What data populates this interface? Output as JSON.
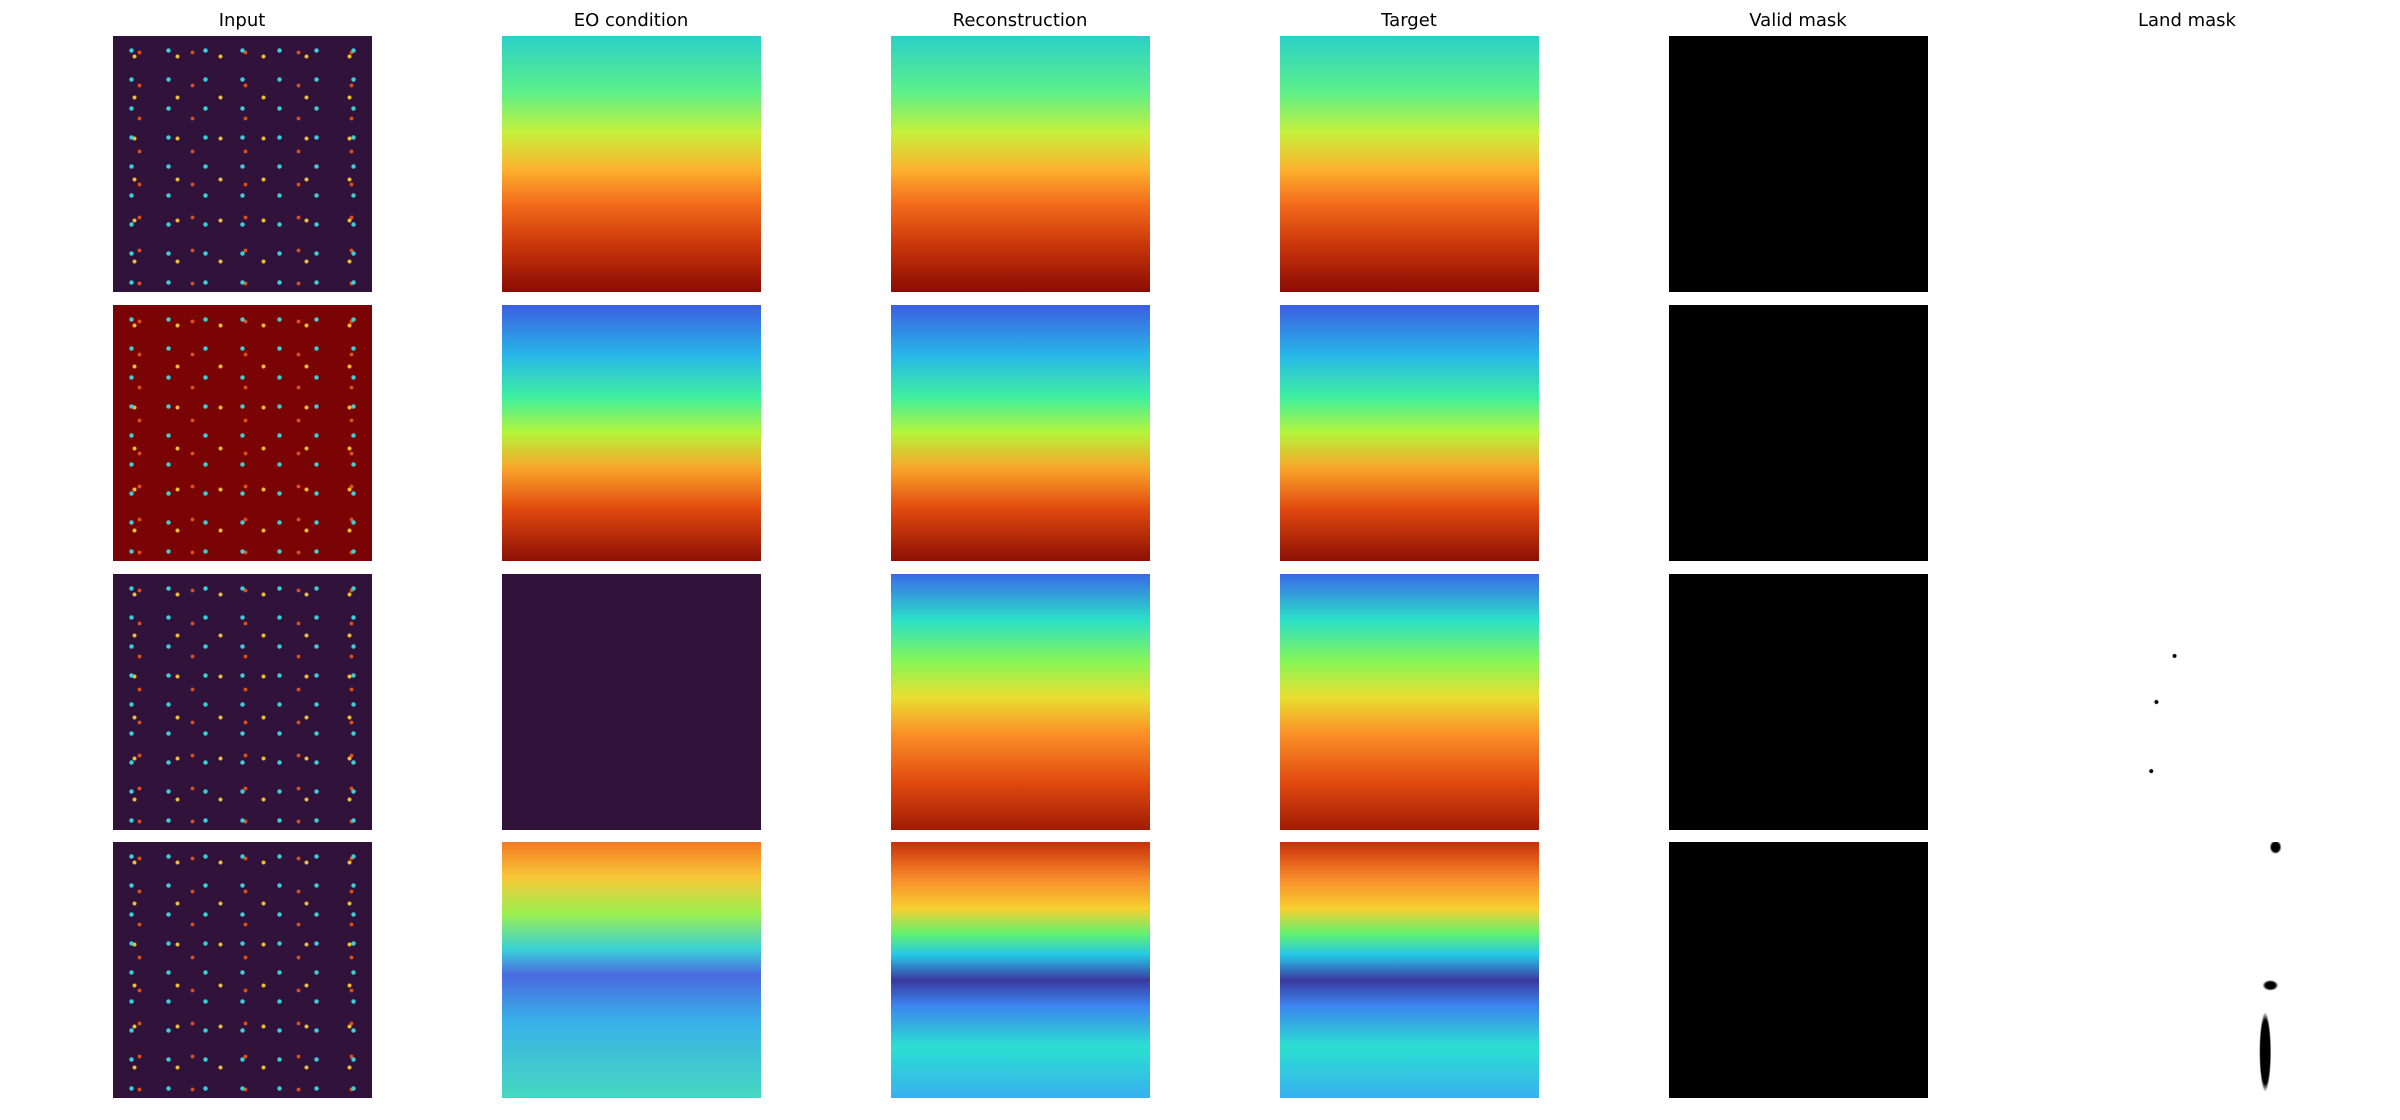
{
  "columns": [
    "Input",
    "EO condition",
    "Reconstruction",
    "Target",
    "Valid mask",
    "Land mask"
  ]
}
